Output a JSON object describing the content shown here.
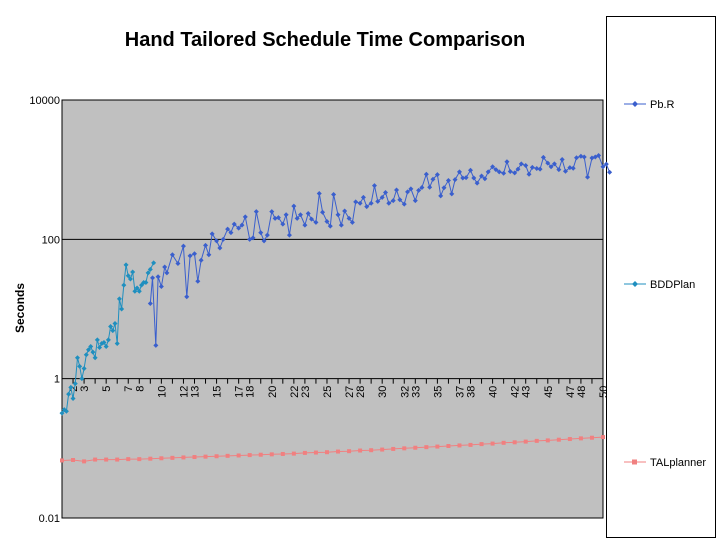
{
  "chart_data": {
    "type": "line",
    "title": "Hand Tailored Schedule Time Comparison",
    "xlabel": "",
    "ylabel": "Seconds",
    "y_scale": "log",
    "ylim": [
      0.01,
      10000
    ],
    "y_ticks": [
      "0.01",
      "1",
      "100",
      "10000"
    ],
    "y_tick_values": [
      0.01,
      1,
      100,
      10000
    ],
    "x_range": [
      1,
      50
    ],
    "x_tick_labels": [
      "2",
      "3",
      "5",
      "7",
      "8",
      "10",
      "12",
      "13",
      "15",
      "17",
      "18",
      "20",
      "22",
      "23",
      "25",
      "27",
      "28",
      "30",
      "32",
      "33",
      "35",
      "37",
      "38",
      "40",
      "42",
      "43",
      "45",
      "47",
      "48",
      "50"
    ],
    "grid": "horizontal",
    "plot_background": "#c0c0c0",
    "legend_position": "right",
    "series": [
      {
        "name": "Pb.R",
        "color": "#3a5fcd",
        "marker": "diamond",
        "x": [
          9.0,
          9.2,
          9.5,
          9.7,
          10.0,
          10.3,
          10.5,
          11.0,
          11.5,
          12.0,
          12.3,
          12.6,
          13.0,
          13.3,
          13.6,
          14.0,
          14.3,
          14.6,
          15.0,
          15.3,
          15.6,
          16.0,
          16.3,
          16.6,
          17.0,
          17.3,
          17.6,
          18.0,
          18.3,
          18.6,
          19.0,
          19.3,
          19.6,
          20.0,
          20.3,
          20.6,
          21.0,
          21.3,
          21.6,
          22.0,
          22.3,
          22.6,
          23.0,
          23.3,
          23.6,
          24.0,
          24.3,
          24.6,
          25.0,
          25.3,
          25.6,
          26.0,
          26.3,
          26.6,
          27.0,
          27.3,
          27.6,
          28.0,
          28.3,
          28.6,
          29.0,
          29.3,
          29.6,
          30.0,
          30.3,
          30.6,
          31.0,
          31.3,
          31.6,
          32.0,
          32.3,
          32.6,
          33.0,
          33.3,
          33.6,
          34.0,
          34.3,
          34.6,
          35.0,
          35.3,
          35.6,
          36.0,
          36.3,
          36.6,
          37.0,
          37.3,
          37.6,
          38.0,
          38.3,
          38.6,
          39.0,
          39.3,
          39.6,
          40.0,
          40.3,
          40.6,
          41.0,
          41.3,
          41.6,
          42.0,
          42.3,
          42.6,
          43.0,
          43.3,
          43.6,
          44.0,
          44.3,
          44.6,
          45.0,
          45.3,
          45.6,
          46.0,
          46.3,
          46.6,
          47.0,
          47.3,
          47.6,
          48.0,
          48.3,
          48.6,
          49.0,
          49.3,
          49.6,
          50.0,
          50.3,
          50.6
        ],
        "y": [
          12,
          28,
          3,
          29,
          21,
          40,
          33,
          60,
          45,
          80,
          15,
          58,
          62,
          25,
          50,
          82,
          60,
          120,
          95,
          75,
          100,
          140,
          125,
          165,
          145,
          160,
          210,
          100,
          105,
          250,
          125,
          95,
          115,
          250,
          200,
          205,
          165,
          225,
          115,
          300,
          200,
          225,
          160,
          235,
          195,
          175,
          455,
          245,
          180,
          155,
          440,
          225,
          160,
          255,
          200,
          175,
          345,
          330,
          400,
          295,
          330,
          590,
          350,
          400,
          470,
          330,
          360,
          510,
          370,
          320,
          480,
          530,
          360,
          505,
          555,
          860,
          560,
          730,
          850,
          420,
          550,
          700,
          450,
          720,
          930,
          760,
          770,
          980,
          760,
          640,
          810,
          740,
          930,
          1100,
          1000,
          930,
          890,
          1300,
          940,
          900,
          1020,
          1210,
          1150,
          860,
          1080,
          1040,
          1020,
          1500,
          1240,
          1100,
          1210,
          1000,
          1400,
          950,
          1070,
          1050,
          1480,
          1560,
          1520,
          780,
          1470,
          1520,
          1600,
          1100,
          1200,
          920
        ]
      },
      {
        "name": "BDDPlan",
        "color": "#1f8fbf",
        "marker": "diamond",
        "x": [
          1.0,
          1.2,
          1.4,
          1.6,
          1.8,
          2.0,
          2.2,
          2.4,
          2.6,
          2.8,
          3.0,
          3.2,
          3.4,
          3.6,
          3.8,
          4.0,
          4.2,
          4.4,
          4.6,
          4.8,
          5.0,
          5.2,
          5.4,
          5.6,
          5.8,
          6.0,
          6.2,
          6.4,
          6.6,
          6.8,
          7.0,
          7.2,
          7.4,
          7.6,
          7.8,
          8.0,
          8.2,
          8.4,
          8.6,
          8.8,
          9.0,
          9.3
        ],
        "y": [
          0.32,
          0.36,
          0.34,
          0.6,
          0.75,
          0.52,
          0.85,
          2.0,
          1.5,
          1.0,
          1.4,
          2.2,
          2.6,
          2.9,
          2.4,
          2.0,
          3.6,
          2.8,
          3.2,
          3.3,
          2.9,
          3.6,
          5.6,
          4.9,
          6.2,
          3.2,
          14,
          10,
          22,
          43,
          30,
          27,
          34,
          18,
          20,
          18,
          22,
          24,
          24,
          33,
          37,
          46
        ]
      },
      {
        "name": "TALplanner",
        "color": "#f08080",
        "marker": "square",
        "x": [
          1,
          2,
          3,
          4,
          5,
          6,
          7,
          8,
          9,
          10,
          11,
          12,
          13,
          14,
          15,
          16,
          17,
          18,
          19,
          20,
          21,
          22,
          23,
          24,
          25,
          26,
          27,
          28,
          29,
          30,
          31,
          32,
          33,
          34,
          35,
          36,
          37,
          38,
          39,
          40,
          41,
          42,
          43,
          44,
          45,
          46,
          47,
          48,
          49,
          50
        ],
        "y": [
          0.067,
          0.068,
          0.065,
          0.069,
          0.069,
          0.069,
          0.07,
          0.07,
          0.071,
          0.072,
          0.073,
          0.074,
          0.075,
          0.076,
          0.077,
          0.078,
          0.079,
          0.08,
          0.081,
          0.082,
          0.083,
          0.084,
          0.086,
          0.087,
          0.088,
          0.09,
          0.091,
          0.093,
          0.094,
          0.096,
          0.098,
          0.1,
          0.102,
          0.104,
          0.106,
          0.108,
          0.11,
          0.112,
          0.115,
          0.117,
          0.12,
          0.122,
          0.125,
          0.128,
          0.13,
          0.133,
          0.136,
          0.139,
          0.142,
          0.145
        ]
      }
    ]
  }
}
